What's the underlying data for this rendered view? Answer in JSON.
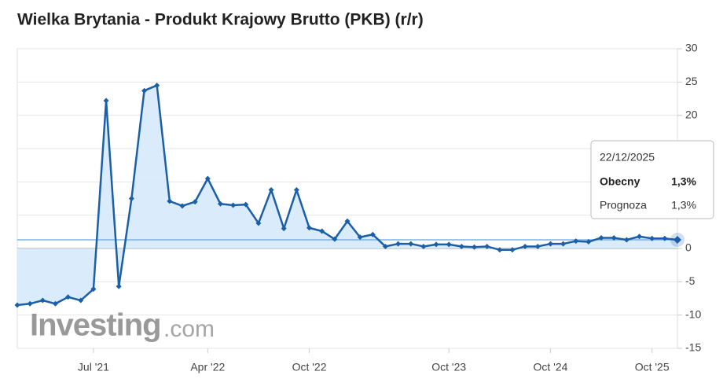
{
  "chart_data": {
    "type": "line",
    "title": "Wielka Brytania - Produkt Krajowy Brutto (PKB) (r/r)",
    "categories": [
      null,
      null,
      null,
      null,
      null,
      null,
      "Jul '21",
      null,
      null,
      null,
      null,
      null,
      null,
      null,
      null,
      "Apr '22",
      null,
      null,
      null,
      null,
      null,
      null,
      null,
      "Oct '22",
      null,
      null,
      null,
      null,
      null,
      null,
      null,
      null,
      null,
      null,
      "Oct '23",
      null,
      null,
      null,
      null,
      null,
      null,
      null,
      "Oct '24",
      null,
      null,
      null,
      null,
      null,
      null,
      null,
      "Oct '25",
      null,
      null
    ],
    "series": [
      {
        "name": "Obecny",
        "color": "#1b5fa8",
        "area_color": "#d6e9fb",
        "values": [
          -8.5,
          -8.3,
          -7.8,
          -8.3,
          -7.3,
          -7.8,
          -6.1,
          22.2,
          -5.7,
          7.5,
          23.7,
          24.5,
          7.1,
          6.4,
          7.0,
          10.5,
          6.7,
          6.5,
          6.6,
          3.8,
          8.8,
          3.0,
          8.8,
          3.1,
          2.6,
          1.4,
          4.1,
          1.7,
          2.1,
          0.3,
          0.7,
          0.7,
          0.3,
          0.6,
          0.6,
          0.3,
          0.2,
          0.3,
          -0.2,
          -0.2,
          0.3,
          0.3,
          0.7,
          0.7,
          1.1,
          1.0,
          1.6,
          1.6,
          1.3,
          1.8,
          1.5,
          1.5,
          1.3
        ]
      }
    ],
    "ylim": [
      -15,
      30
    ],
    "yticks": [
      -15,
      -10,
      -5,
      0,
      5,
      10,
      15,
      20,
      25,
      30
    ],
    "grid": true
  },
  "tooltip": {
    "date": "22/12/2025",
    "rows": [
      {
        "label": "Obecny",
        "value": "1,3%"
      },
      {
        "label": "Prognoza",
        "value": "1,3%"
      }
    ]
  },
  "watermark": {
    "brand": "Investing",
    "suffix": ".com"
  }
}
